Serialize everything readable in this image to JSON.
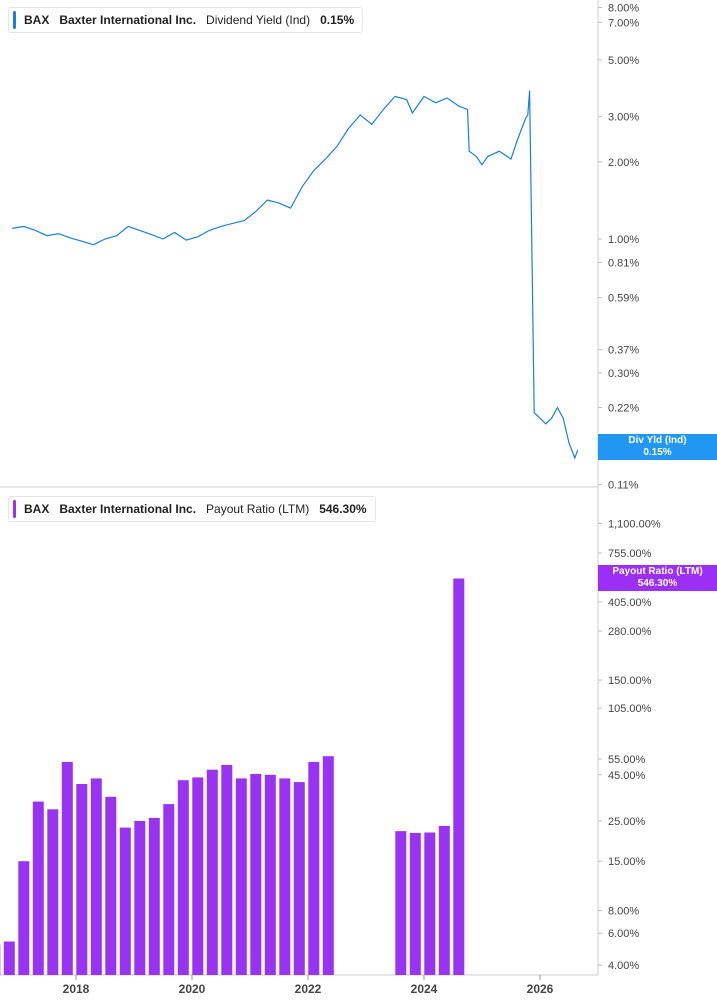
{
  "panels": [
    {
      "ticker": "BAX",
      "company": "Baxter International Inc.",
      "metric": "Dividend Yield (Ind)",
      "current": "0.15%",
      "tag_line1": "Div Yld (Ind)",
      "tag_line2": "0.15%"
    },
    {
      "ticker": "BAX",
      "company": "Baxter International Inc.",
      "metric": "Payout Ratio (LTM)",
      "current": "546.30%",
      "tag_line1": "Payout Ratio (LTM)",
      "tag_line2": "546.30%"
    }
  ],
  "colors": {
    "yield_line": "#1a7fe0",
    "payout_bar": "#9933f2",
    "yield_tag": "#2196f3",
    "payout_tag": "#9b2ff5",
    "axis_text": "#444444",
    "divider": "#cccccc"
  },
  "chart_data": [
    {
      "type": "line",
      "title": "BAX Baxter International Inc. Dividend Yield (Ind) 0.15%",
      "scale": "log",
      "y_ticks": [
        "8.00%",
        "7.00%",
        "5.00%",
        "3.00%",
        "2.00%",
        "1.00%",
        "0.81%",
        "0.59%",
        "0.37%",
        "0.30%",
        "0.22%",
        "0.11%"
      ],
      "y_tick_values": [
        8.0,
        7.0,
        5.0,
        3.0,
        2.0,
        1.0,
        0.81,
        0.59,
        0.37,
        0.3,
        0.22,
        0.11
      ],
      "ylim": [
        0.11,
        9.0
      ],
      "x_ticks": [
        "2018",
        "2020",
        "2022",
        "2024",
        "2026"
      ],
      "series": [
        {
          "x": [
            2016.9,
            2017.1,
            2017.3,
            2017.5,
            2017.7,
            2017.9,
            2018.1,
            2018.3,
            2018.5,
            2018.7,
            2018.9,
            2019.1,
            2019.3,
            2019.5,
            2019.7,
            2019.9,
            2020.1,
            2020.3,
            2020.5,
            2020.7,
            2020.9,
            2021.1,
            2021.3,
            2021.5,
            2021.7,
            2021.9,
            2022.1,
            2022.3,
            2022.5,
            2022.7,
            2022.9,
            2023.1,
            2023.3,
            2023.5,
            2023.7,
            2023.8,
            2024.0,
            2024.2,
            2024.4,
            2024.6,
            2024.75,
            2024.78,
            2024.9,
            2025.0,
            2025.1,
            2025.3,
            2025.5,
            2025.6,
            2025.75,
            2025.79,
            2025.82,
            2025.9,
            2026.0,
            2026.1,
            2026.2,
            2026.3,
            2026.4,
            2026.5,
            2026.6,
            2026.65
          ],
          "y": [
            1.1,
            1.12,
            1.08,
            1.03,
            1.05,
            1.01,
            0.98,
            0.95,
            1.0,
            1.03,
            1.12,
            1.08,
            1.04,
            1.0,
            1.06,
            0.99,
            1.02,
            1.08,
            1.12,
            1.15,
            1.18,
            1.28,
            1.42,
            1.38,
            1.32,
            1.6,
            1.85,
            2.05,
            2.3,
            2.7,
            3.05,
            2.8,
            3.2,
            3.6,
            3.5,
            3.1,
            3.6,
            3.4,
            3.55,
            3.3,
            3.2,
            2.2,
            2.1,
            1.95,
            2.1,
            2.2,
            2.05,
            2.4,
            2.95,
            3.05,
            3.8,
            0.21,
            0.2,
            0.19,
            0.2,
            0.22,
            0.2,
            0.16,
            0.14,
            0.15
          ]
        }
      ]
    },
    {
      "type": "bar",
      "title": "BAX Baxter International Inc. Payout Ratio (LTM) 546.30%",
      "scale": "log",
      "y_ticks": [
        "1,100.00%",
        "755.00%",
        "405.00%",
        "280.00%",
        "150.00%",
        "105.00%",
        "55.00%",
        "45.00%",
        "25.00%",
        "15.00%",
        "8.00%",
        "6.00%",
        "4.00%"
      ],
      "y_tick_values": [
        1100,
        755,
        405,
        280,
        150,
        105,
        55,
        45,
        25,
        15,
        8,
        6,
        4
      ],
      "ylim": [
        3.7,
        1400
      ],
      "x_ticks": [
        "2018",
        "2020",
        "2022",
        "2024",
        "2026"
      ],
      "x": [
        2016.6,
        2016.85,
        2017.1,
        2017.35,
        2017.6,
        2017.85,
        2018.1,
        2018.35,
        2018.6,
        2018.85,
        2019.1,
        2019.35,
        2019.6,
        2019.85,
        2020.1,
        2020.35,
        2020.6,
        2020.85,
        2021.1,
        2021.35,
        2021.6,
        2021.85,
        2022.1,
        2022.35,
        2023.6,
        2023.85,
        2024.1,
        2024.35,
        2024.6
      ],
      "values": [
        5.2,
        5.4,
        15.0,
        32.0,
        29.0,
        53.0,
        40.0,
        43.0,
        34.0,
        23.0,
        25.0,
        26.0,
        31.0,
        42.0,
        43.5,
        48.0,
        51.0,
        43.0,
        45.5,
        45.0,
        43.0,
        41.0,
        53.0,
        57.0,
        22.0,
        21.5,
        21.6,
        23.5,
        546.3
      ]
    }
  ]
}
